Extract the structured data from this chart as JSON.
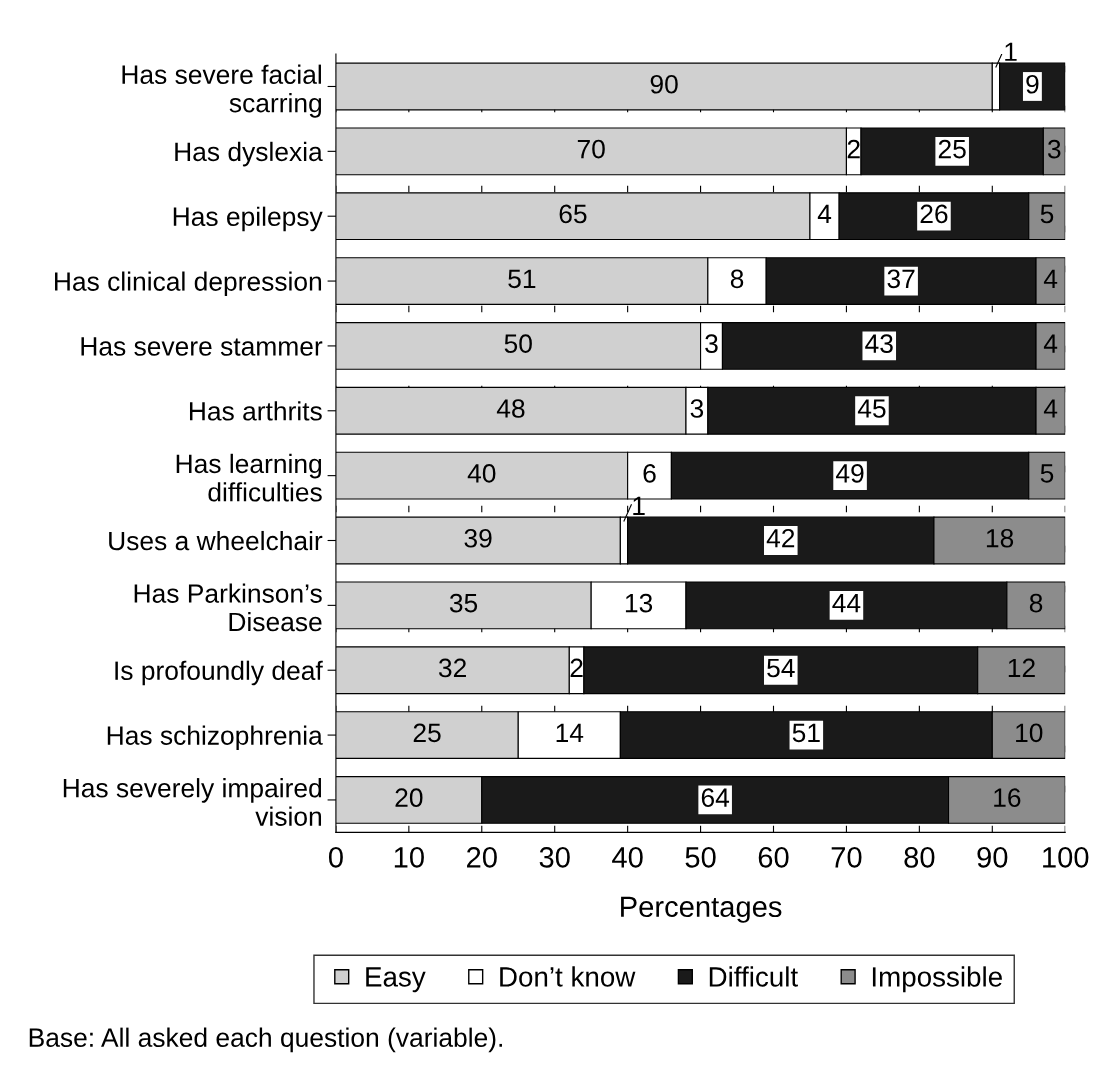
{
  "chart_data": {
    "type": "bar",
    "orientation": "horizontal",
    "stacked": true,
    "categories": [
      "Has severe facial\nscarring",
      "Has dyslexia",
      "Has epilepsy",
      "Has clinical depression",
      "Has severe stammer",
      "Has arthrits",
      "Has learning\ndifficulties",
      "Uses a wheelchair",
      "Has Parkinson’s\nDisease",
      "Is profoundly deaf",
      "Has schizophrenia",
      "Has severely impaired\nvision"
    ],
    "series": [
      {
        "name": "Easy",
        "color": "#d0d0d0",
        "values": [
          90,
          70,
          65,
          51,
          50,
          48,
          40,
          39,
          35,
          32,
          25,
          20
        ],
        "value_labels": [
          "90",
          "70",
          "65",
          "51",
          "50",
          "48",
          "40",
          "39",
          "35",
          "32",
          "25",
          "20"
        ]
      },
      {
        "name": "Don’t know",
        "color": "#ffffff",
        "values": [
          1,
          2,
          4,
          8,
          3,
          3,
          6,
          1,
          13,
          2,
          14,
          0
        ],
        "value_labels": [
          "1",
          "2",
          "4",
          "8",
          "3",
          "3",
          "6",
          "1",
          "13",
          "2",
          "14",
          null
        ]
      },
      {
        "name": "Difficult",
        "color": "#1a1a1a",
        "values": [
          9,
          25,
          26,
          37,
          43,
          45,
          49,
          42,
          44,
          54,
          51,
          64
        ],
        "value_labels": [
          "9",
          "25",
          "26",
          "37",
          "43",
          "45",
          "49",
          "42",
          "44",
          "54",
          "51",
          "64"
        ]
      },
      {
        "name": "Impossible",
        "color": "#8c8c8c",
        "values": [
          0,
          3,
          5,
          4,
          4,
          4,
          5,
          18,
          8,
          12,
          10,
          16
        ],
        "value_labels": [
          null,
          "3",
          "5",
          "4",
          "4",
          "4",
          "5",
          "18",
          "8",
          "12",
          "10",
          "16"
        ]
      }
    ],
    "xlim": [
      0,
      100
    ],
    "xticks": [
      0,
      10,
      20,
      30,
      40,
      50,
      60,
      70,
      80,
      90,
      100
    ],
    "xlabel": "Percentages",
    "grid": "x",
    "legend": "bottom",
    "annotations": [
      "Base: All asked each question (variable)."
    ]
  }
}
